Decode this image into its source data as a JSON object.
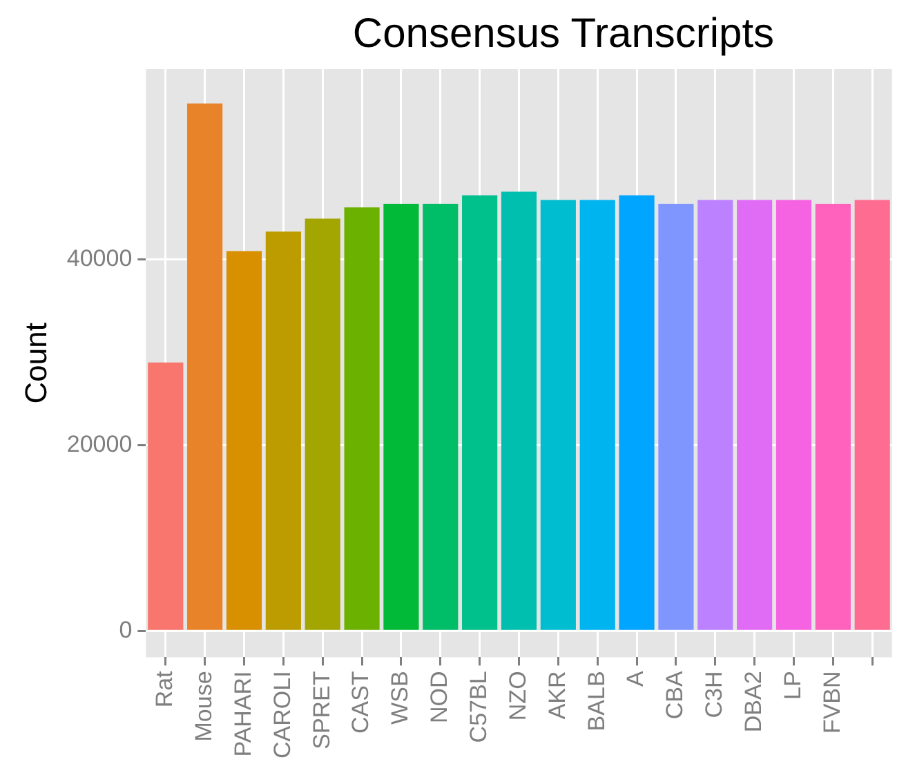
{
  "chart_data": {
    "type": "bar",
    "title": "Consensus Transcripts",
    "ylabel": "Count",
    "categories": [
      "Rat",
      "Mouse",
      "PAHARI",
      "CAROLI",
      "SPRET",
      "CAST",
      "WSB",
      "NOD",
      "C57BL",
      "NZO",
      "AKR",
      "BALB",
      "A",
      "CBA",
      "C3H",
      "DBA2",
      "LP",
      "FVBN",
      null
    ],
    "values": [
      28900,
      56800,
      40900,
      43000,
      44400,
      45600,
      46000,
      46000,
      46900,
      47300,
      46400,
      46400,
      46900,
      46000,
      46400,
      46400,
      46400,
      46000,
      46400
    ],
    "colors": [
      "#f8766d",
      "#e8832a",
      "#d89000",
      "#bd9c00",
      "#a3a500",
      "#6bb100",
      "#00ba38",
      "#00be67",
      "#00c08b",
      "#00bfae",
      "#00bdd0",
      "#00b4ef",
      "#00a5ff",
      "#7f96ff",
      "#bc81ff",
      "#e06cf6",
      "#f563e3",
      "#ff62bc",
      "#ff6c91"
    ],
    "ylim": [
      -2840,
      60500
    ],
    "yticks": [
      0,
      20000,
      40000
    ],
    "grid": true,
    "legend": false
  }
}
